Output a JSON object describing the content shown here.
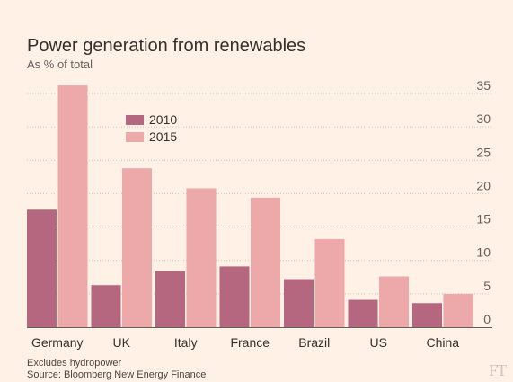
{
  "chart_data": {
    "type": "bar",
    "title": "Power generation from renewables",
    "subtitle": "As % of total",
    "categories": [
      "Germany",
      "UK",
      "Italy",
      "France",
      "Brazil",
      "US",
      "China"
    ],
    "series": [
      {
        "name": "2010",
        "values": [
          17.6,
          6.3,
          8.4,
          9.1,
          7.2,
          4.1,
          3.6
        ],
        "color": "#b5677f"
      },
      {
        "name": "2015",
        "values": [
          36.2,
          23.8,
          20.8,
          19.4,
          13.2,
          7.6,
          5.0
        ],
        "color": "#eda8a9"
      }
    ],
    "ylim": [
      0,
      35
    ],
    "yticks": [
      0,
      5,
      10,
      15,
      20,
      25,
      30,
      35
    ],
    "y_axis_side": "right",
    "grid": true,
    "legend_position": "top-left"
  },
  "notes": [
    "Excludes hydropower",
    "Source: Bloomberg New Energy Finance"
  ],
  "logo": "FT"
}
